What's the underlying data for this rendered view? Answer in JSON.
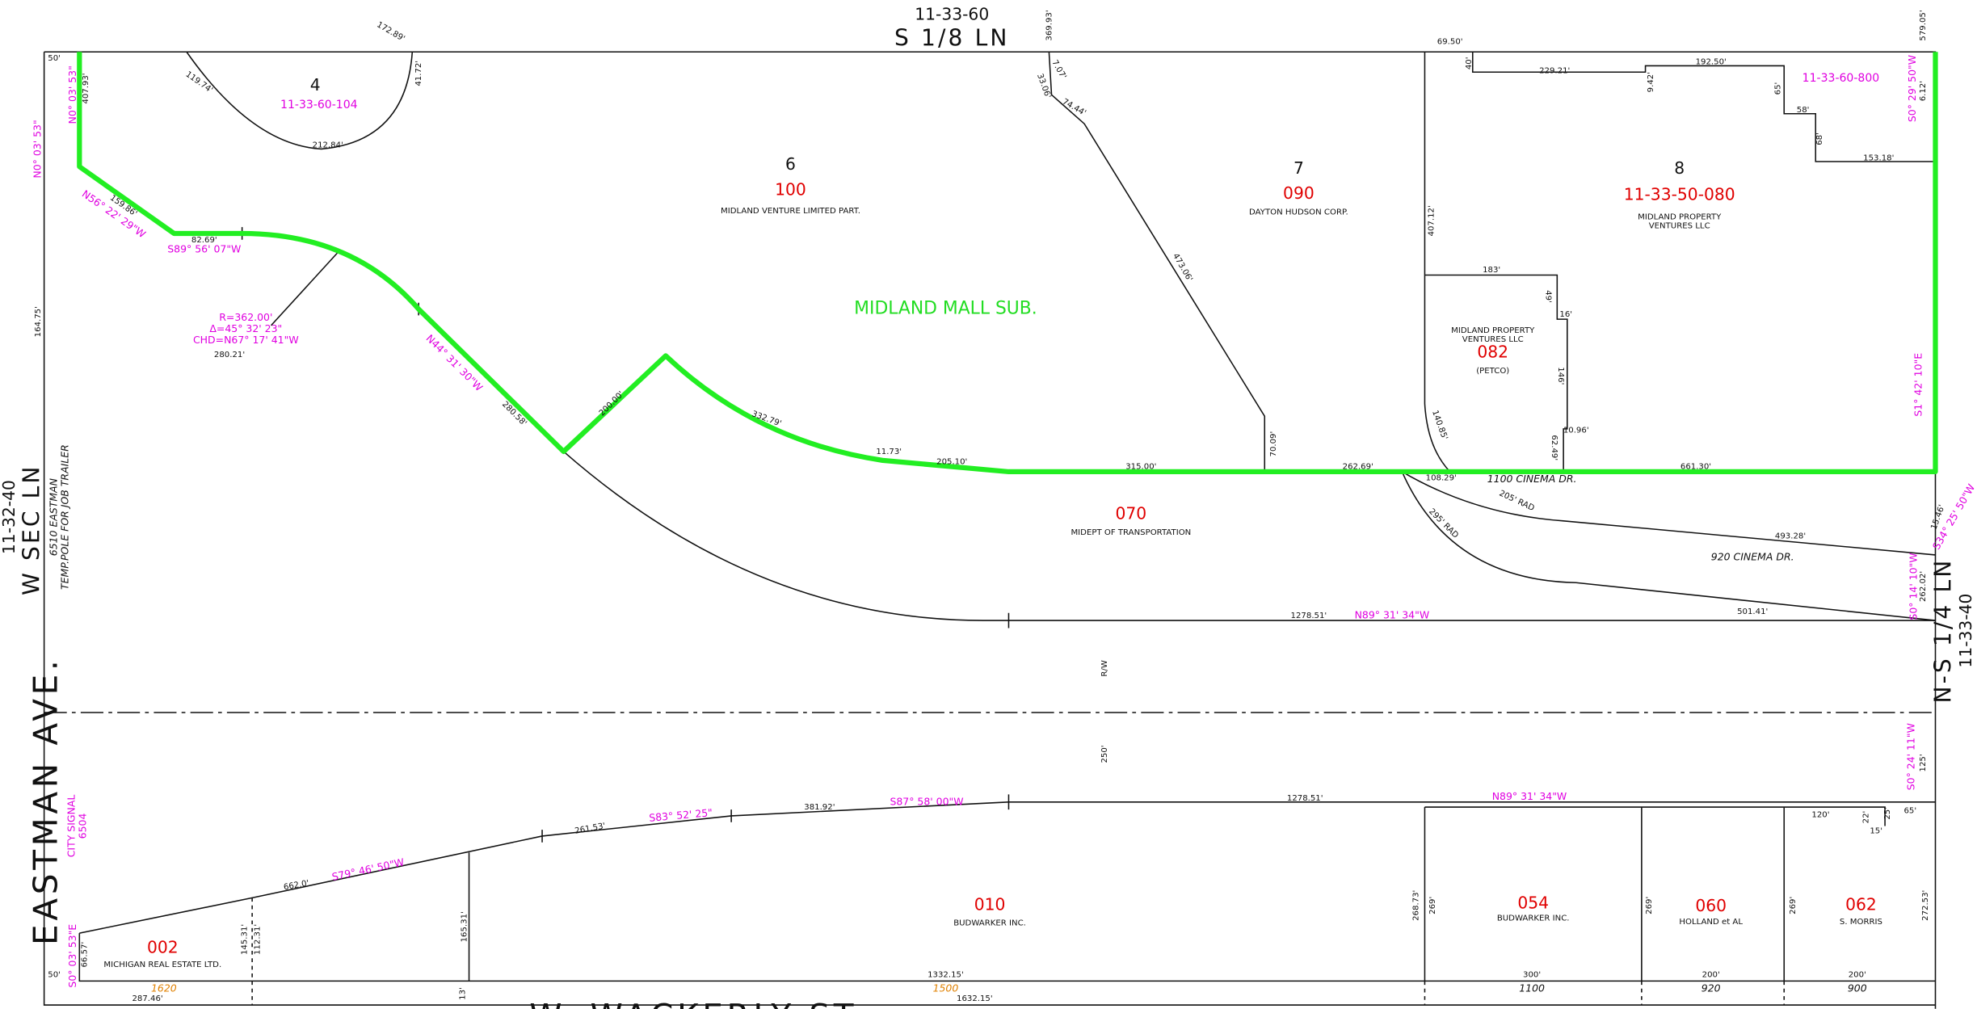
{
  "roads": [
    "11-33-60",
    "S 1/8 LN",
    "11-32-40",
    "W SEC LN",
    "EASTMAN AVE.",
    "W. WACKERLY ST",
    "N-S 1/4 LN",
    "11-33-40"
  ],
  "parcel_labels": [
    "4",
    "11-33-60-104",
    "6",
    "100",
    "MIDLAND VENTURE LIMITED PART.",
    "7",
    "090",
    "DAYTON HUDSON CORP.",
    "8",
    "11-33-50-080",
    "MIDLAND PROPERTY",
    "VENTURES LLC",
    "11-33-60-800",
    "MIDLAND PROPERTY",
    "VENTURES LLC",
    "082",
    "(PETCO)",
    "MIDLAND MALL SUB.",
    "070",
    "MIDEPT OF TRANSPORTATION",
    "010",
    "BUDWARKER INC.",
    "054",
    "BUDWARKER INC.",
    "060",
    "HOLLAND et AL",
    "062",
    "S. MORRIS",
    "002",
    "MICHIGAN REAL ESTATE LTD."
  ],
  "notes": [
    "6510 EASTMAN",
    "TEMP.POLE FOR JOB TRAILER",
    "CITY SIGNAL",
    "6504",
    "R/W",
    "1100 CINEMA DR.",
    "920 CINEMA DR.",
    "1620",
    "1500",
    "1100",
    "920",
    "900"
  ],
  "dimensions": [
    "50'",
    "172.89'",
    "119.74'",
    "41.72'",
    "212.84'",
    "369.93'",
    "33.06'",
    "7.07'",
    "74.44'",
    "473.06'",
    "69.50'",
    "40'",
    "229.21'",
    "192.50'",
    "9.42'",
    "65'",
    "58'",
    "68'",
    "153.18'",
    "579.05'",
    "6.12'",
    "407.93'",
    "159.86'",
    "82.69'",
    "164.75'",
    "280.58'",
    "200.00'",
    "332.79'",
    "11.73'",
    "205.10'",
    "315.00'",
    "70.09'",
    "262.69'",
    "407.12'",
    "183'",
    "49'",
    "16'",
    "146'",
    "10.96'",
    "62.49'",
    "140.85'",
    "108.29'",
    "661.30'",
    "205' RAD",
    "295' RAD",
    "493.28'",
    "1278.51'",
    "501.41'",
    "15.46'",
    "262.02'",
    "250'",
    "125'",
    "65'",
    "1278.51'",
    "381.92'",
    "261.53'",
    "662.0'",
    "120'",
    "22'",
    "15'",
    "25'",
    "165.31'",
    "145.31'",
    "112.31'",
    "268.73'",
    "269'",
    "269'",
    "269'",
    "272.53'",
    "66.57'",
    "50'",
    "1332.15'",
    "300'",
    "200'",
    "200'",
    "287.46'",
    "1632.15'",
    "13'"
  ],
  "bearings": [
    "N0° 03' 53\"",
    "N0° 03' 53\"",
    "N56° 22' 29\"W",
    "S89° 56' 07\"W",
    "N44° 31' 30\"W",
    "S0° 29' 50\"W",
    "S1° 42' 10\"E",
    "N89° 31' 34\"W",
    "S34° 25' 50\"W",
    "S0° 14' 10\"W",
    "S0° 24' 11\"W",
    "N89° 31' 34\"W",
    "S87° 58' 00\"W",
    "S83° 52' 25\"",
    "S79° 46' 50\"W",
    "S0° 03' 53\"E"
  ],
  "curve": [
    "R=362.00'",
    "Δ=45° 32' 23\"",
    "CHD=N67° 17' 41\"W",
    "280.21'"
  ]
}
